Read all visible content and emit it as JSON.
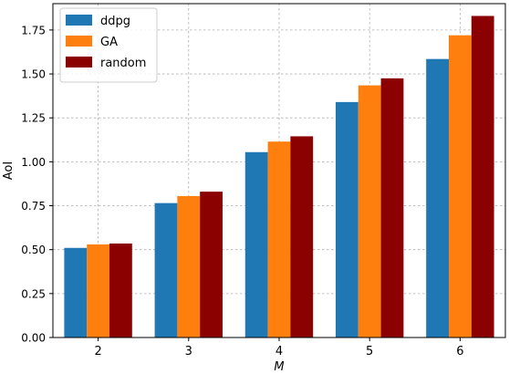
{
  "chart_data": {
    "type": "bar",
    "title": "",
    "xlabel": "M",
    "ylabel": "AoI",
    "categories": [
      "2",
      "3",
      "4",
      "5",
      "6"
    ],
    "series": [
      {
        "name": "ddpg",
        "color": "#1f77b4",
        "values": [
          0.51,
          0.765,
          1.055,
          1.34,
          1.585
        ]
      },
      {
        "name": "GA",
        "color": "#ff7f0e",
        "values": [
          0.53,
          0.805,
          1.115,
          1.435,
          1.72
        ]
      },
      {
        "name": "random",
        "color": "#8b0000",
        "values": [
          0.535,
          0.83,
          1.145,
          1.475,
          1.83
        ]
      }
    ],
    "ylim": [
      0,
      1.9
    ],
    "yticks": [
      "0.00",
      "0.25",
      "0.50",
      "0.75",
      "1.00",
      "1.25",
      "1.50",
      "1.75"
    ],
    "grid": true,
    "legend_position": "top-left"
  }
}
